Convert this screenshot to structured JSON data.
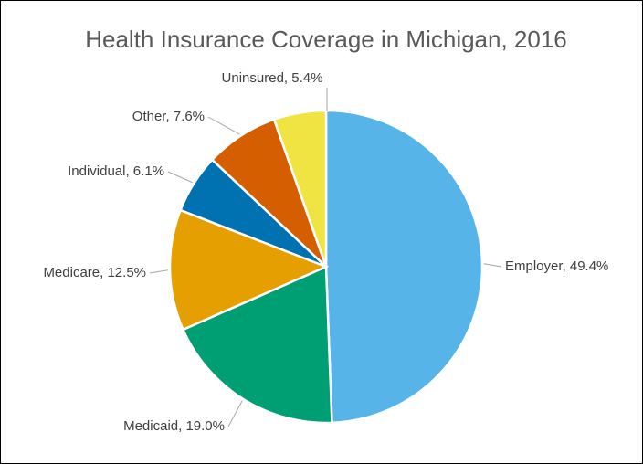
{
  "chart_data": {
    "type": "pie",
    "title": "Health Insurance Coverage in Michigan, 2016",
    "categories": [
      "Employer",
      "Medicaid",
      "Medicare",
      "Individual",
      "Other",
      "Uninsured"
    ],
    "values": [
      49.4,
      19.0,
      12.5,
      6.1,
      7.6,
      5.4
    ],
    "value_labels": [
      "Employer, 49.4%",
      "Medicaid, 19.0%",
      "Medicare, 12.5%",
      "Individual, 6.1%",
      "Other, 7.6%",
      "Uninsured, 5.4%"
    ],
    "colors": [
      "#56b4e9",
      "#009e73",
      "#e69f00",
      "#0072b2",
      "#d55e00",
      "#f0e442"
    ]
  }
}
